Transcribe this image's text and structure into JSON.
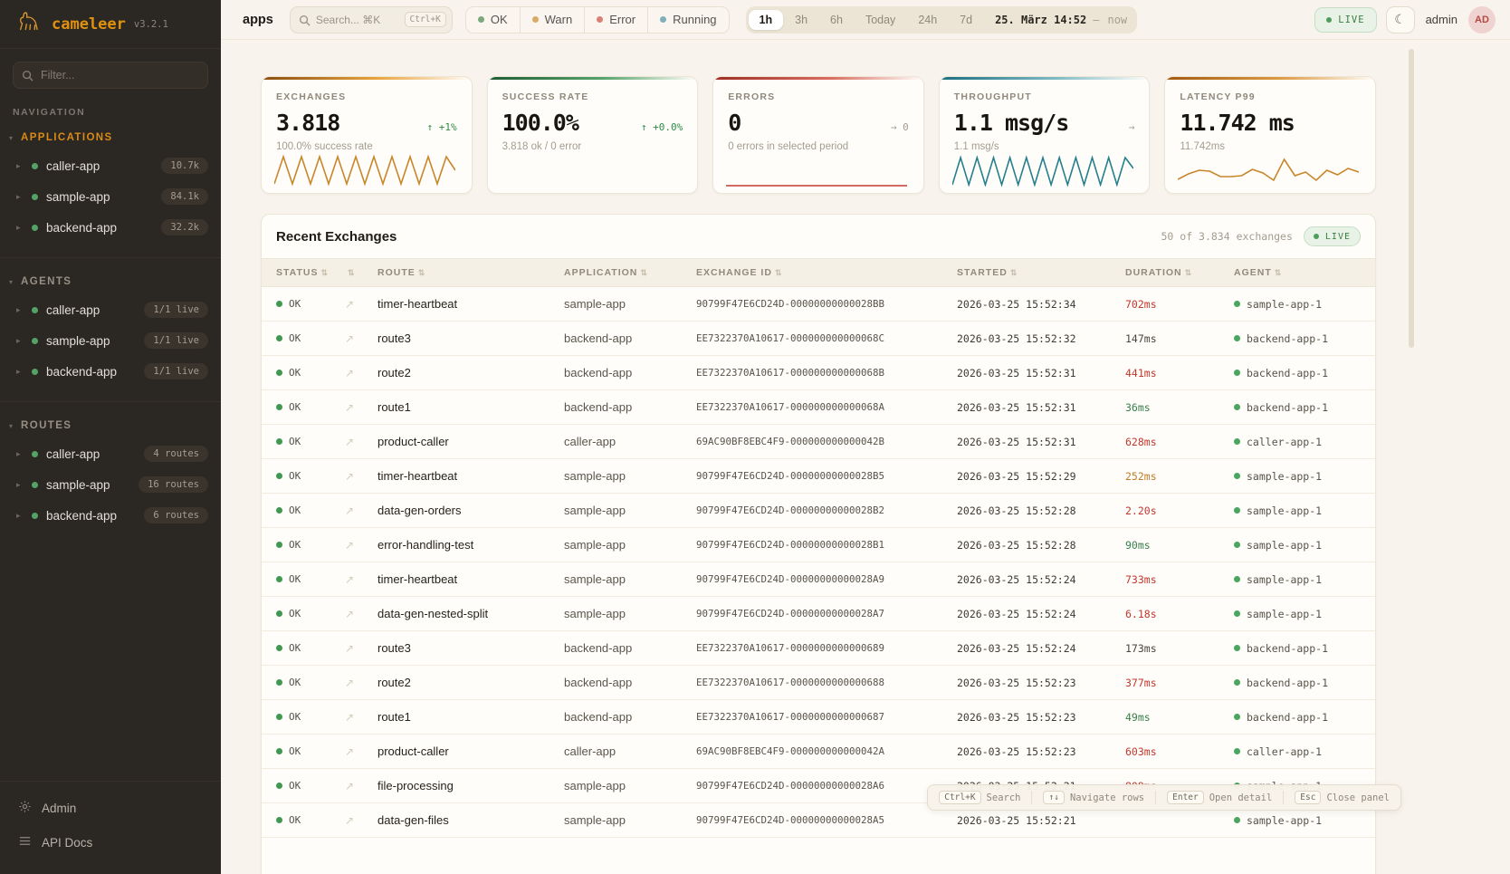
{
  "sidebar": {
    "logo": {
      "name": "cameleer",
      "version": "v3.2.1"
    },
    "filter_placeholder": "Filter...",
    "nav_label": "NAVIGATION",
    "groups": [
      {
        "label": "APPLICATIONS",
        "active": true,
        "items": [
          {
            "name": "caller-app",
            "badge": "10.7k"
          },
          {
            "name": "sample-app",
            "badge": "84.1k"
          },
          {
            "name": "backend-app",
            "badge": "32.2k"
          }
        ]
      },
      {
        "label": "AGENTS",
        "active": false,
        "items": [
          {
            "name": "caller-app",
            "badge": "1/1 live"
          },
          {
            "name": "sample-app",
            "badge": "1/1 live"
          },
          {
            "name": "backend-app",
            "badge": "1/1 live"
          }
        ]
      },
      {
        "label": "ROUTES",
        "active": false,
        "items": [
          {
            "name": "caller-app",
            "badge": "4 routes"
          },
          {
            "name": "sample-app",
            "badge": "16 routes"
          },
          {
            "name": "backend-app",
            "badge": "6 routes"
          }
        ]
      }
    ],
    "footer_items": [
      {
        "label": "Admin",
        "icon": "gear-icon"
      },
      {
        "label": "API Docs",
        "icon": "list-icon"
      }
    ]
  },
  "topbar": {
    "page": "apps",
    "search": {
      "placeholder": "Search... ⌘K",
      "shortcut": "Ctrl+K"
    },
    "status_filters": [
      {
        "label": "OK",
        "color": "#7aa87c"
      },
      {
        "label": "Warn",
        "color": "#d9aa66"
      },
      {
        "label": "Error",
        "color": "#d97f75"
      },
      {
        "label": "Running",
        "color": "#7fb0ba"
      }
    ],
    "time_ranges": [
      "1h",
      "3h",
      "6h",
      "Today",
      "24h",
      "7d"
    ],
    "active_range": "1h",
    "datetime": "25. März 14:52",
    "datetime_separator": "—",
    "datetime_suffix": "now",
    "live_label": "LIVE",
    "user": "admin",
    "avatar_initials": "AD"
  },
  "cards": [
    {
      "label": "EXCHANGES",
      "value": "3.818",
      "trend": "↑ +1%",
      "trend_color": "green",
      "subtitle": "100.0% success rate",
      "accent": {
        "from": "#8a4d0f",
        "to": "#e8a33d"
      },
      "spark": {
        "color": "#c8862b",
        "points": [
          37,
          7,
          37,
          7,
          37,
          7,
          37,
          7,
          37,
          7,
          37,
          7,
          37,
          7,
          37,
          7,
          37,
          7,
          37,
          7,
          22
        ]
      }
    },
    {
      "label": "SUCCESS RATE",
      "value": "100.0%",
      "trend": "↑ +0.0%",
      "trend_color": "green",
      "subtitle": "3.818 ok / 0 error",
      "accent": {
        "from": "#1e5c33",
        "to": "#57a36b"
      },
      "spark": null
    },
    {
      "label": "ERRORS",
      "value": "0",
      "trend": "→ 0",
      "trend_color": "gray",
      "subtitle": "0 errors in selected period",
      "accent": {
        "from": "#a02c24",
        "to": "#d96a5d"
      },
      "spark": {
        "color": "#c23b33",
        "points": [
          39,
          39
        ]
      }
    },
    {
      "label": "THROUGHPUT",
      "value": "1.1 msg/s",
      "trend": "→",
      "trend_color": "gray",
      "subtitle": "1.1 msg/s",
      "accent": {
        "from": "#1a6e80",
        "to": "#7db9c4"
      },
      "spark": {
        "color": "#257f8d",
        "points": [
          38,
          8,
          38,
          8,
          38,
          8,
          38,
          8,
          38,
          8,
          38,
          8,
          38,
          8,
          38,
          8,
          38,
          8,
          38,
          8,
          38,
          8,
          20
        ]
      }
    },
    {
      "label": "LATENCY P99",
      "value": "11.742 ms",
      "trend": "",
      "trend_color": "gray",
      "subtitle": "11.742ms",
      "accent": {
        "from": "#a3590e",
        "to": "#dc9a43"
      },
      "spark": {
        "color": "#c8862b",
        "points": [
          32,
          26,
          22,
          23,
          29,
          29,
          28,
          21,
          25,
          33,
          10,
          28,
          24,
          33,
          22,
          27,
          20,
          24
        ]
      }
    }
  ],
  "table": {
    "title": "Recent Exchanges",
    "summary": "50 of 3.834 exchanges",
    "live_label": "LIVE",
    "columns": [
      "STATUS",
      "",
      "ROUTE",
      "APPLICATION",
      "EXCHANGE ID",
      "STARTED",
      "DURATION",
      "AGENT"
    ],
    "rows": [
      {
        "status": "OK",
        "route": "timer-heartbeat",
        "application": "sample-app",
        "exchange_id": "90799F47E6CD24D-00000000000028BB",
        "started": "2026-03-25 15:52:34",
        "duration": "702ms",
        "duration_color": "red",
        "agent": "sample-app-1"
      },
      {
        "status": "OK",
        "route": "route3",
        "application": "backend-app",
        "exchange_id": "EE7322370A10617-000000000000068C",
        "started": "2026-03-25 15:52:32",
        "duration": "147ms",
        "duration_color": "neutral",
        "agent": "backend-app-1"
      },
      {
        "status": "OK",
        "route": "route2",
        "application": "backend-app",
        "exchange_id": "EE7322370A10617-000000000000068B",
        "started": "2026-03-25 15:52:31",
        "duration": "441ms",
        "duration_color": "red",
        "agent": "backend-app-1"
      },
      {
        "status": "OK",
        "route": "route1",
        "application": "backend-app",
        "exchange_id": "EE7322370A10617-000000000000068A",
        "started": "2026-03-25 15:52:31",
        "duration": "36ms",
        "duration_color": "green",
        "agent": "backend-app-1"
      },
      {
        "status": "OK",
        "route": "product-caller",
        "application": "caller-app",
        "exchange_id": "69AC90BF8EBC4F9-000000000000042B",
        "started": "2026-03-25 15:52:31",
        "duration": "628ms",
        "duration_color": "red",
        "agent": "caller-app-1"
      },
      {
        "status": "OK",
        "route": "timer-heartbeat",
        "application": "sample-app",
        "exchange_id": "90799F47E6CD24D-00000000000028B5",
        "started": "2026-03-25 15:52:29",
        "duration": "252ms",
        "duration_color": "amber",
        "agent": "sample-app-1"
      },
      {
        "status": "OK",
        "route": "data-gen-orders",
        "application": "sample-app",
        "exchange_id": "90799F47E6CD24D-00000000000028B2",
        "started": "2026-03-25 15:52:28",
        "duration": "2.20s",
        "duration_color": "red",
        "agent": "sample-app-1"
      },
      {
        "status": "OK",
        "route": "error-handling-test",
        "application": "sample-app",
        "exchange_id": "90799F47E6CD24D-00000000000028B1",
        "started": "2026-03-25 15:52:28",
        "duration": "90ms",
        "duration_color": "green",
        "agent": "sample-app-1"
      },
      {
        "status": "OK",
        "route": "timer-heartbeat",
        "application": "sample-app",
        "exchange_id": "90799F47E6CD24D-00000000000028A9",
        "started": "2026-03-25 15:52:24",
        "duration": "733ms",
        "duration_color": "red",
        "agent": "sample-app-1"
      },
      {
        "status": "OK",
        "route": "data-gen-nested-split",
        "application": "sample-app",
        "exchange_id": "90799F47E6CD24D-00000000000028A7",
        "started": "2026-03-25 15:52:24",
        "duration": "6.18s",
        "duration_color": "red",
        "agent": "sample-app-1"
      },
      {
        "status": "OK",
        "route": "route3",
        "application": "backend-app",
        "exchange_id": "EE7322370A10617-0000000000000689",
        "started": "2026-03-25 15:52:24",
        "duration": "173ms",
        "duration_color": "neutral",
        "agent": "backend-app-1"
      },
      {
        "status": "OK",
        "route": "route2",
        "application": "backend-app",
        "exchange_id": "EE7322370A10617-0000000000000688",
        "started": "2026-03-25 15:52:23",
        "duration": "377ms",
        "duration_color": "red",
        "agent": "backend-app-1"
      },
      {
        "status": "OK",
        "route": "route1",
        "application": "backend-app",
        "exchange_id": "EE7322370A10617-0000000000000687",
        "started": "2026-03-25 15:52:23",
        "duration": "49ms",
        "duration_color": "green",
        "agent": "backend-app-1"
      },
      {
        "status": "OK",
        "route": "product-caller",
        "application": "caller-app",
        "exchange_id": "69AC90BF8EBC4F9-000000000000042A",
        "started": "2026-03-25 15:52:23",
        "duration": "603ms",
        "duration_color": "red",
        "agent": "caller-app-1"
      },
      {
        "status": "OK",
        "route": "file-processing",
        "application": "sample-app",
        "exchange_id": "90799F47E6CD24D-00000000000028A6",
        "started": "2026-03-25 15:52:21",
        "duration": "809ms",
        "duration_color": "red",
        "agent": "sample-app-1"
      },
      {
        "status": "OK",
        "route": "data-gen-files",
        "application": "sample-app",
        "exchange_id": "90799F47E6CD24D-00000000000028A5",
        "started": "2026-03-25 15:52:21",
        "duration": "",
        "duration_color": "neutral",
        "agent": "sample-app-1"
      }
    ]
  },
  "shortcuts": [
    {
      "keys": "Ctrl+K",
      "label": "Search"
    },
    {
      "keys": "↑↓",
      "label": "Navigate rows"
    },
    {
      "keys": "Enter",
      "label": "Open detail"
    },
    {
      "keys": "Esc",
      "label": "Close panel"
    }
  ]
}
